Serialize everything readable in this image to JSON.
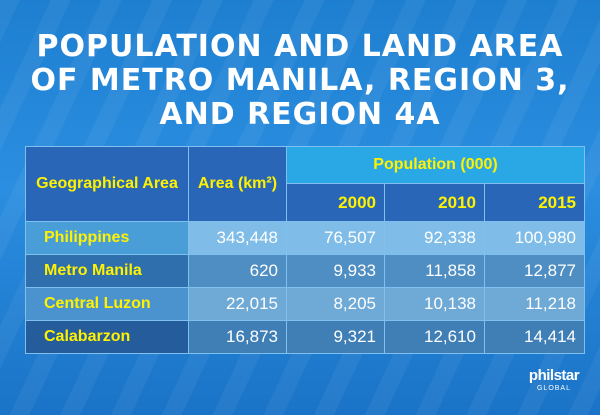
{
  "title": {
    "line1": "POPULATION AND LAND AREA",
    "line2": "OF METRO MANILA, REGION 3,",
    "line3": "AND REGION 4A"
  },
  "table": {
    "col_geo": "Geographical Area",
    "col_area": "Area (km²)",
    "col_population": "Population (000)",
    "years": [
      "2000",
      "2010",
      "2015"
    ],
    "rows": [
      {
        "name": "Philippines",
        "area": "343,448",
        "p2000": "76,507",
        "p2010": "92,338",
        "p2015": "100,980"
      },
      {
        "name": "Metro Manila",
        "area": "620",
        "p2000": "9,933",
        "p2010": "11,858",
        "p2015": "12,877"
      },
      {
        "name": "Central Luzon",
        "area": "22,015",
        "p2000": "8,205",
        "p2010": "10,138",
        "p2015": "11,218"
      },
      {
        "name": "Calabarzon",
        "area": "16,873",
        "p2000": "9,321",
        "p2010": "12,610",
        "p2015": "14,414"
      }
    ]
  },
  "logo": {
    "main": "philstar",
    "sub": "GLOBAL"
  },
  "colors": {
    "header_text": "#fff200",
    "background": "#2b8ee0"
  }
}
